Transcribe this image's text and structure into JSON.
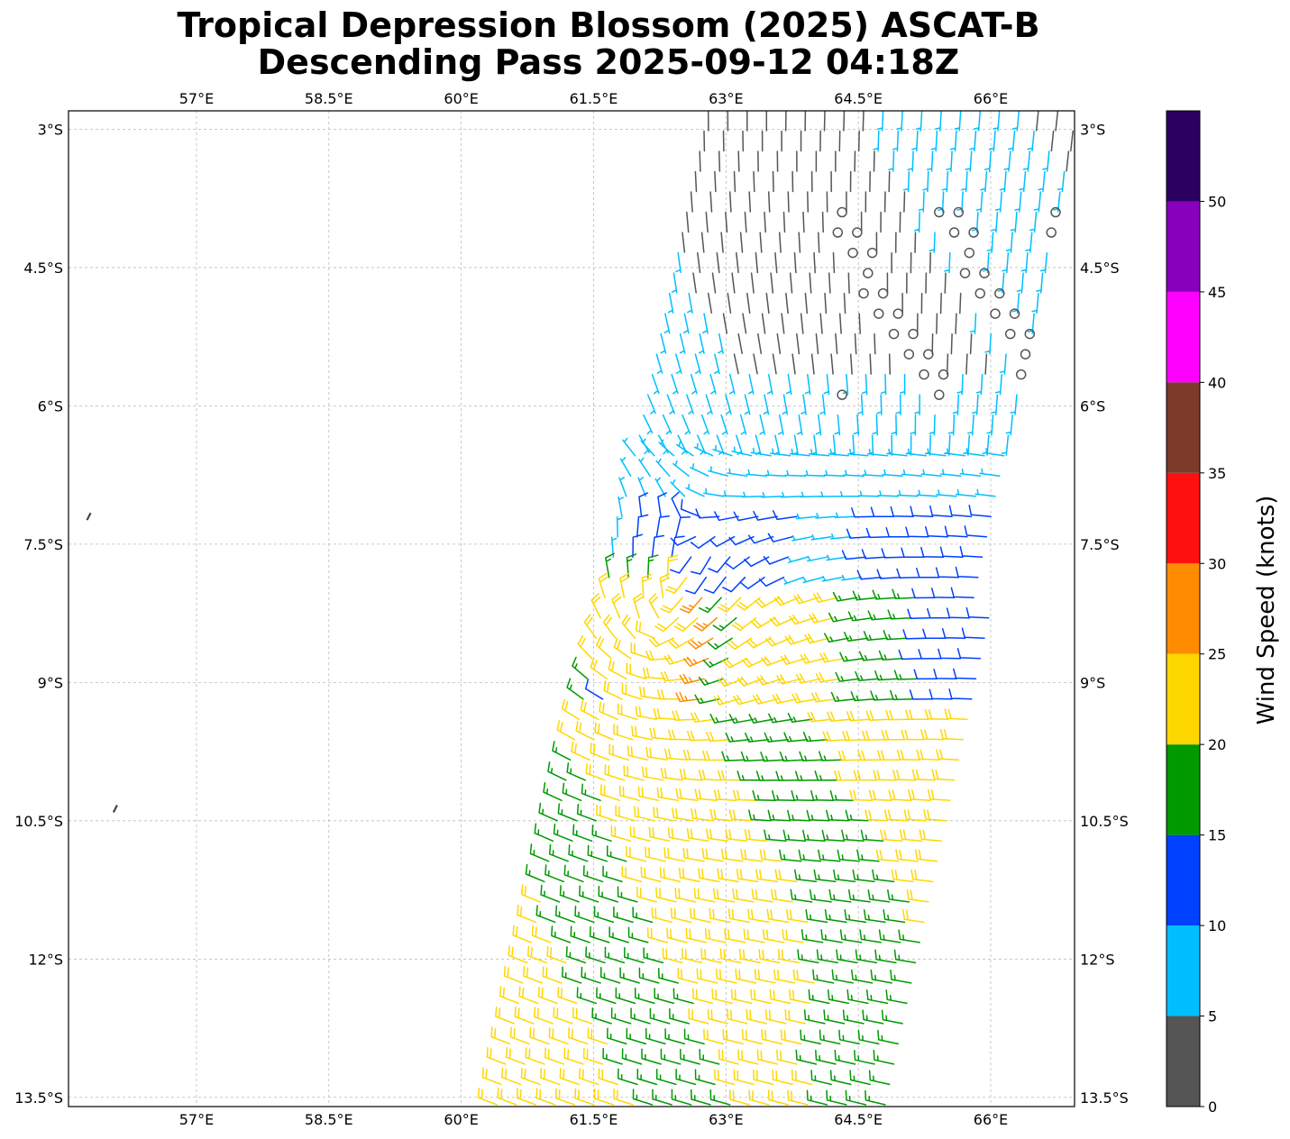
{
  "title": {
    "line1": "Tropical Depression Blossom (2025) ASCAT-B",
    "line2": "Descending Pass 2025-09-12 04:18Z"
  },
  "map": {
    "lon_range": [
      55.55,
      66.95
    ],
    "lat_range": [
      -13.6,
      -2.8
    ],
    "lon_ticks": [
      {
        "value": 57.0,
        "label": "57°E"
      },
      {
        "value": 58.5,
        "label": "58.5°E"
      },
      {
        "value": 60.0,
        "label": "60°E"
      },
      {
        "value": 61.5,
        "label": "61.5°E"
      },
      {
        "value": 63.0,
        "label": "63°E"
      },
      {
        "value": 64.5,
        "label": "64.5°E"
      },
      {
        "value": 66.0,
        "label": "66°E"
      }
    ],
    "lat_ticks": [
      {
        "value": -3.0,
        "label": "3°S"
      },
      {
        "value": -4.5,
        "label": "4.5°S"
      },
      {
        "value": -6.0,
        "label": "6°S"
      },
      {
        "value": -7.5,
        "label": "7.5°S"
      },
      {
        "value": -9.0,
        "label": "9°S"
      },
      {
        "value": -10.5,
        "label": "10.5°S"
      },
      {
        "value": -12.0,
        "label": "12°S"
      },
      {
        "value": -13.5,
        "label": "13.5°S"
      }
    ],
    "grid": true,
    "island_marks": [
      {
        "lon": 55.78,
        "lat": -7.2
      },
      {
        "lon": 56.08,
        "lat": -10.37
      }
    ]
  },
  "colorbar": {
    "label": "Wind Speed (knots)",
    "bounds": [
      0,
      5,
      10,
      15,
      20,
      25,
      30,
      35,
      40,
      45,
      50,
      55
    ],
    "tick_labels": [
      "0",
      "5",
      "10",
      "15",
      "20",
      "25",
      "30",
      "35",
      "40",
      "45",
      "50"
    ],
    "colors": [
      "#555555",
      "#00bfff",
      "#0040ff",
      "#009900",
      "#ffd700",
      "#ff8c00",
      "#ff1010",
      "#7b3a2a",
      "#ff00ff",
      "#8800bb",
      "#2a0060"
    ]
  },
  "chart_data": {
    "type": "wind_barbs",
    "center": {
      "lon": 62.2,
      "lat": -8.5
    },
    "swath": {
      "edges_top_lat": -2.8,
      "edges_bottom_lat": -13.6,
      "east_top_lon": 67.0,
      "east_bottom_lon": 65.0,
      "west_top_lon": 62.8,
      "west_bottom_lon": 60.4
    }
  }
}
